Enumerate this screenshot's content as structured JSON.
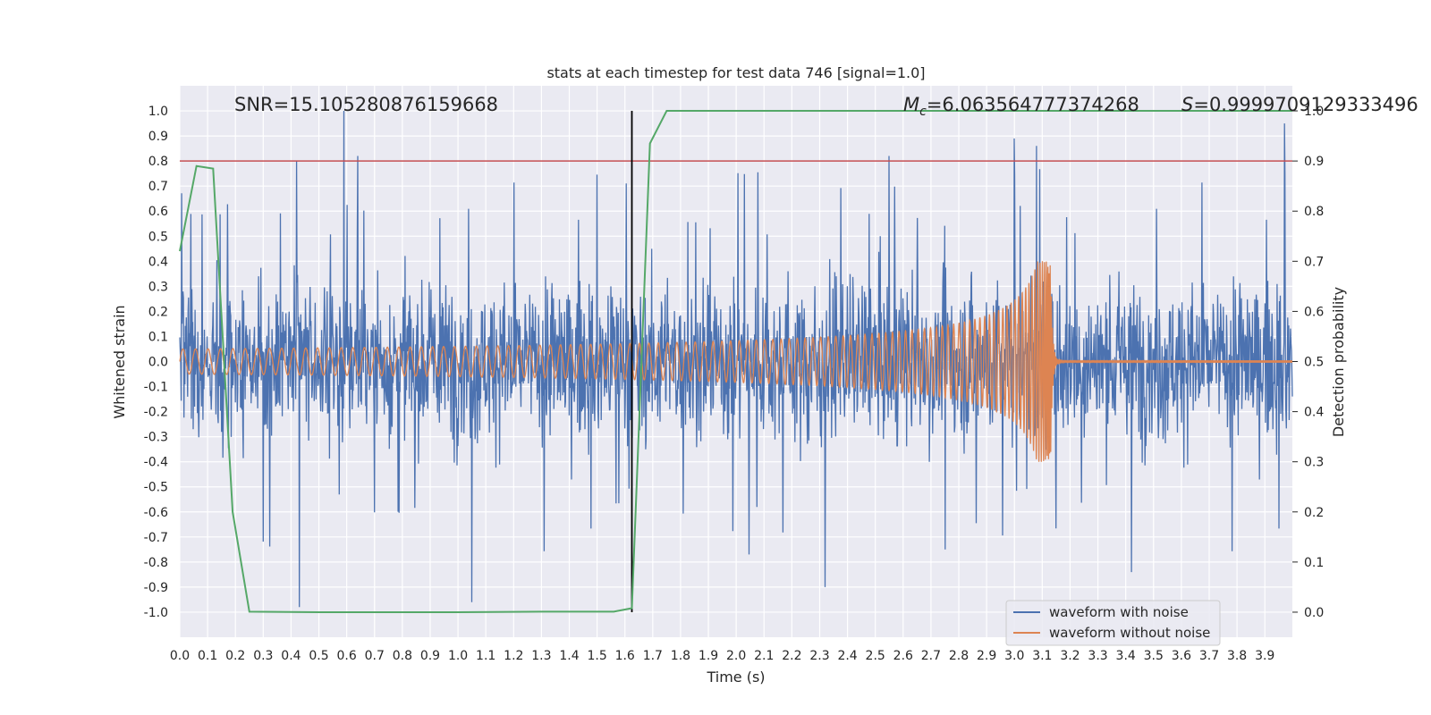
{
  "chart_data": {
    "type": "line",
    "title": "stats at each timestep for test data 746 [signal=1.0]",
    "xlabel": "Time (s)",
    "ylabel": "Whitened strain",
    "y2label": "Detection probability",
    "xlim": [
      0.0,
      3.999
    ],
    "ylim": [
      -1.1,
      1.1
    ],
    "y2lim": [
      -0.05,
      1.05
    ],
    "x_ticks": [
      "0.0",
      "0.1",
      "0.2",
      "0.3",
      "0.4",
      "0.5",
      "0.6",
      "0.7",
      "0.8",
      "0.9",
      "1.0",
      "1.1",
      "1.2",
      "1.3",
      "1.4",
      "1.5",
      "1.6",
      "1.7",
      "1.8",
      "1.9",
      "2.0",
      "2.1",
      "2.2",
      "2.3",
      "2.4",
      "2.5",
      "2.6",
      "2.7",
      "2.8",
      "2.9",
      "3.0",
      "3.1",
      "3.2",
      "3.3",
      "3.4",
      "3.5",
      "3.6",
      "3.7",
      "3.8",
      "3.9"
    ],
    "y_ticks": [
      "1.0",
      "0.9",
      "0.8",
      "0.7",
      "0.6",
      "0.5",
      "0.4",
      "0.3",
      "0.2",
      "0.1",
      "0.0",
      "-0.1",
      "-0.2",
      "-0.3",
      "-0.4",
      "-0.5",
      "-0.6",
      "-0.7",
      "-0.8",
      "-0.9",
      "-1.0"
    ],
    "y2_ticks": [
      "1.0",
      "0.9",
      "0.8",
      "0.7",
      "0.6",
      "0.5",
      "0.4",
      "0.3",
      "0.2",
      "0.1",
      "0.0"
    ],
    "grid": true,
    "legend_position": "lower-right",
    "annotations": {
      "snr": "SNR=15.105280876159668",
      "mc_symbol": "M",
      "mc_sub": "c",
      "mc_value": "=6.063564777374268",
      "s_symbol": "S",
      "s_value": "=0.9999709129333496"
    },
    "threshold": {
      "y": 0.8,
      "color": "#c44e52"
    },
    "vline": {
      "x": 1.625,
      "ymin": -1.0,
      "ymax": 1.0,
      "color": "#000000"
    },
    "series": [
      {
        "name": "waveform with noise",
        "color": "#4c72b0",
        "axis": "left",
        "kind": "noise",
        "amplitude_range": [
          -0.98,
          1.0
        ],
        "peaks": [
          {
            "x": 0.43,
            "y": -0.98
          },
          {
            "x": 0.59,
            "y": 1.0
          },
          {
            "x": 0.64,
            "y": 0.82
          },
          {
            "x": 0.42,
            "y": 0.8
          },
          {
            "x": 1.05,
            "y": -0.96
          },
          {
            "x": 2.55,
            "y": 0.82
          },
          {
            "x": 3.0,
            "y": 0.89
          },
          {
            "x": 3.08,
            "y": 0.86
          },
          {
            "x": 3.97,
            "y": 0.95
          },
          {
            "x": 2.32,
            "y": -0.9
          },
          {
            "x": 3.42,
            "y": -0.84
          }
        ]
      },
      {
        "name": "waveform without noise",
        "color": "#dd8452",
        "axis": "left",
        "kind": "chirp",
        "start_amplitude": 0.05,
        "peak_amplitude": 0.4,
        "merger_time": 3.13,
        "start_frequency": 22
      },
      {
        "name": "detection probability",
        "color": "#55a868",
        "axis": "right",
        "x": [
          0.0,
          0.06,
          0.12,
          0.19,
          0.25,
          0.5,
          1.0,
          1.3,
          1.56,
          1.625,
          1.69,
          1.75,
          2.0,
          3.0,
          3.999
        ],
        "y": [
          0.72,
          0.89,
          0.885,
          0.2,
          0.001,
          0.0,
          0.0,
          0.001,
          0.001,
          0.008,
          0.935,
          1.0,
          1.0,
          1.0,
          1.0
        ]
      }
    ]
  }
}
